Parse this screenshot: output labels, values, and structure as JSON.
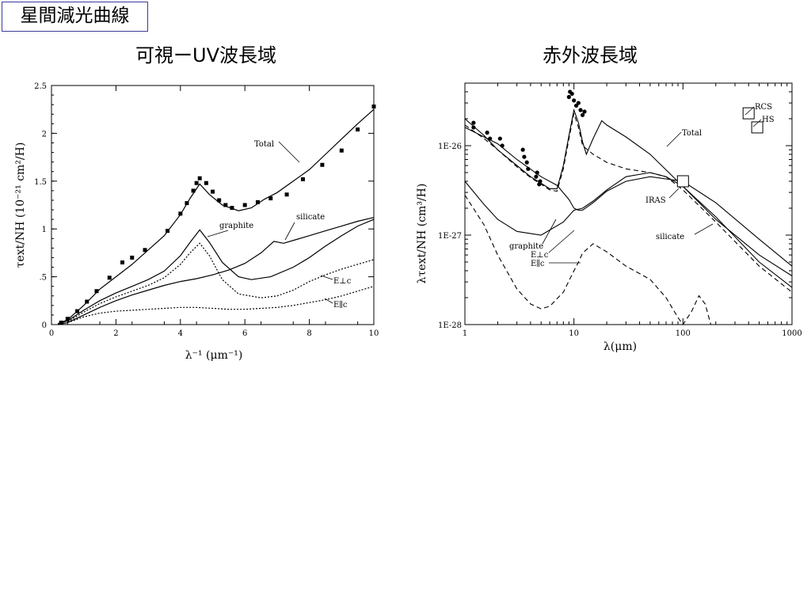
{
  "slide_title": "星間減光曲線",
  "panels": {
    "left_heading": "可視ーUV波長域",
    "right_heading": "赤外波長域"
  },
  "chart_data": [
    {
      "type": "line",
      "heading": "可視ーUV波長域",
      "xlabel": "λ⁻¹ (μm⁻¹)",
      "ylabel": "τext/NH (10⁻²¹ cm²/H)",
      "xlim": [
        0,
        10
      ],
      "ylim": [
        0,
        2.5
      ],
      "x_ticks": [
        0,
        2,
        4,
        6,
        8,
        10
      ],
      "x_tick_labels": [
        "0",
        "2",
        "4",
        "6",
        "8",
        "10"
      ],
      "y_ticks": [
        0,
        0.5,
        1,
        1.5,
        2,
        2.5
      ],
      "y_tick_labels": [
        "0",
        ".5",
        "1",
        "1.5",
        "2",
        "2.5"
      ],
      "grid": false,
      "series": [
        {
          "name": "Total",
          "style": "solid",
          "x": [
            0.2,
            0.5,
            1.0,
            1.5,
            2.0,
            2.5,
            3.0,
            3.5,
            4.0,
            4.3,
            4.6,
            4.9,
            5.3,
            5.8,
            6.2,
            6.6,
            7.0,
            7.5,
            8.0,
            8.5,
            9.0,
            9.5,
            10.0
          ],
          "y": [
            0.01,
            0.05,
            0.2,
            0.37,
            0.5,
            0.63,
            0.78,
            0.93,
            1.15,
            1.32,
            1.47,
            1.36,
            1.25,
            1.19,
            1.22,
            1.31,
            1.38,
            1.5,
            1.62,
            1.78,
            1.94,
            2.1,
            2.25
          ]
        },
        {
          "name": "graphite",
          "style": "solid",
          "x": [
            0.2,
            0.5,
            1.0,
            1.5,
            2.0,
            2.5,
            3.0,
            3.5,
            4.0,
            4.3,
            4.6,
            4.9,
            5.3,
            5.8,
            6.2,
            6.8,
            7.5,
            8.0,
            8.5,
            9.0,
            9.5,
            10.0
          ],
          "y": [
            0.005,
            0.04,
            0.15,
            0.25,
            0.33,
            0.4,
            0.47,
            0.56,
            0.72,
            0.86,
            0.99,
            0.86,
            0.65,
            0.5,
            0.47,
            0.5,
            0.6,
            0.7,
            0.82,
            0.93,
            1.03,
            1.1
          ]
        },
        {
          "name": "silicate",
          "style": "solid",
          "x": [
            0.2,
            0.5,
            1.0,
            1.5,
            2.0,
            2.5,
            3.0,
            3.5,
            4.0,
            4.5,
            5.0,
            5.5,
            6.0,
            6.5,
            6.9,
            7.2,
            7.6,
            8.0,
            8.5,
            9.0,
            9.5,
            10.0
          ],
          "y": [
            0.0,
            0.02,
            0.1,
            0.18,
            0.25,
            0.31,
            0.36,
            0.41,
            0.45,
            0.48,
            0.52,
            0.57,
            0.64,
            0.75,
            0.87,
            0.85,
            0.89,
            0.93,
            0.98,
            1.03,
            1.08,
            1.12
          ]
        },
        {
          "name": "E⊥c",
          "style": "dotted",
          "x": [
            0.5,
            1.0,
            1.5,
            2.0,
            2.5,
            3.0,
            3.5,
            4.0,
            4.3,
            4.6,
            4.9,
            5.3,
            5.8,
            6.5,
            7.0,
            7.5,
            8.0,
            8.5,
            9.0,
            9.5,
            10.0
          ],
          "y": [
            0.03,
            0.13,
            0.22,
            0.29,
            0.35,
            0.41,
            0.49,
            0.63,
            0.75,
            0.85,
            0.72,
            0.47,
            0.32,
            0.28,
            0.3,
            0.36,
            0.45,
            0.52,
            0.58,
            0.63,
            0.68
          ]
        },
        {
          "name": "E∥c",
          "style": "dotted",
          "x": [
            0.5,
            1.0,
            1.5,
            2.0,
            2.5,
            3.0,
            3.5,
            4.0,
            4.5,
            5.0,
            5.5,
            6.0,
            6.5,
            7.0,
            7.5,
            8.0,
            8.5,
            9.0,
            9.5,
            10.0
          ],
          "y": [
            0.02,
            0.08,
            0.12,
            0.14,
            0.15,
            0.16,
            0.17,
            0.18,
            0.18,
            0.17,
            0.16,
            0.16,
            0.17,
            0.18,
            0.2,
            0.23,
            0.26,
            0.3,
            0.35,
            0.4
          ]
        }
      ],
      "observed_points": {
        "x": [
          0.3,
          0.5,
          0.8,
          1.1,
          1.4,
          1.8,
          2.2,
          2.5,
          2.9,
          3.6,
          4.0,
          4.2,
          4.4,
          4.5,
          4.6,
          4.8,
          5.0,
          5.2,
          5.4,
          5.6,
          6.0,
          6.4,
          6.8,
          7.3,
          7.8,
          8.4,
          9.0,
          9.5,
          10.0
        ],
        "y": [
          0.02,
          0.06,
          0.14,
          0.24,
          0.35,
          0.49,
          0.65,
          0.7,
          0.78,
          0.98,
          1.16,
          1.27,
          1.4,
          1.48,
          1.53,
          1.48,
          1.39,
          1.3,
          1.25,
          1.22,
          1.25,
          1.28,
          1.32,
          1.36,
          1.52,
          1.67,
          1.82,
          2.04,
          2.28
        ]
      },
      "annotations": [
        "Total",
        "graphite",
        "silicate",
        "E⊥c",
        "E∥c"
      ]
    },
    {
      "type": "line",
      "heading": "赤外波長域",
      "xlabel": "λ(μm)",
      "ylabel": "λτext/NH (cm³/H)",
      "x_scale": "log",
      "y_scale": "log",
      "xlim": [
        1,
        1000
      ],
      "ylim": [
        1e-28,
        5e-26
      ],
      "x_tick_labels": [
        "1",
        "10",
        "100",
        "1000"
      ],
      "y_tick_labels": [
        "1E-28",
        "1E-27",
        "1E-26"
      ],
      "grid": false,
      "series": [
        {
          "name": "Total",
          "style": "solid",
          "x": [
            1,
            1.5,
            2,
            3,
            4,
            5,
            6,
            7,
            8,
            9,
            10,
            11,
            12,
            13,
            15,
            18,
            20,
            30,
            50,
            100,
            200,
            500,
            1000
          ],
          "y": [
            2e-26,
            1.3e-26,
            9e-27,
            6e-27,
            4.5e-27,
            3.8e-27,
            3.3e-27,
            3.3e-27,
            6e-27,
            1.3e-26,
            2.5e-26,
            1.8e-26,
            1.1e-26,
            8e-27,
            1.2e-26,
            1.9e-26,
            1.7e-26,
            1.25e-26,
            8e-27,
            3.5e-27,
            1.5e-27,
            6e-28,
            3.5e-28
          ]
        },
        {
          "name": "graphite",
          "style": "solid",
          "x": [
            1,
            1.5,
            2,
            3,
            5,
            8,
            10,
            12,
            15,
            20,
            30,
            50,
            70,
            100,
            200,
            500,
            1000
          ],
          "y": [
            4e-27,
            2.2e-27,
            1.5e-27,
            1.1e-27,
            1e-27,
            1.4e-27,
            1.9e-27,
            2e-27,
            2.4e-27,
            3.2e-27,
            4.5e-27,
            5e-27,
            4.5e-27,
            3.5e-27,
            1.6e-27,
            5e-28,
            2.6e-28
          ]
        },
        {
          "name": "silicate",
          "style": "dashed",
          "x": [
            1,
            1.5,
            2,
            3,
            4,
            5,
            6,
            7,
            8,
            9,
            10,
            11,
            12,
            15,
            20,
            30,
            50,
            70,
            100,
            200,
            500,
            1000
          ],
          "y": [
            1.7e-26,
            1.2e-26,
            9e-27,
            5.8e-27,
            4.4e-27,
            3.7e-27,
            3.2e-27,
            3.1e-27,
            5.5e-27,
            1.2e-26,
            2.3e-26,
            1.6e-26,
            1e-26,
            8e-27,
            6.5e-27,
            5.5e-27,
            5e-27,
            4.5e-27,
            3.2e-27,
            1.4e-27,
            4.5e-28,
            2.3e-28
          ]
        },
        {
          "name": "E⊥c",
          "style": "solid",
          "x": [
            1,
            2,
            3,
            5,
            7,
            9,
            10,
            11,
            12,
            15,
            20,
            30,
            50,
            100,
            200,
            500,
            1000
          ],
          "y": [
            1.6e-26,
            1.05e-26,
            7e-27,
            4.5e-27,
            3.6e-27,
            2.5e-27,
            2e-27,
            1.9e-27,
            1.9e-27,
            2.3e-27,
            3.1e-27,
            4e-27,
            4.5e-27,
            4e-27,
            2.3e-27,
            9e-28,
            4.5e-28
          ]
        },
        {
          "name": "E∥c",
          "style": "dashed",
          "x": [
            1,
            1.5,
            2,
            3,
            4,
            5,
            6,
            8,
            10,
            11,
            12,
            15,
            20,
            30,
            50,
            70,
            90,
            100,
            120,
            140,
            160,
            180
          ],
          "y": [
            2.8e-27,
            1.3e-27,
            6e-28,
            2.5e-28,
            1.7e-28,
            1.5e-28,
            1.6e-28,
            2.3e-28,
            4e-28,
            5e-28,
            6.3e-28,
            8e-28,
            6.5e-28,
            4.5e-28,
            3.2e-28,
            2e-28,
            1.2e-28,
            1e-28,
            1.4e-28,
            2.1e-28,
            1.7e-28,
            1e-28
          ]
        }
      ],
      "observed_points": {
        "x": [
          1.2,
          1.2,
          1.6,
          1.7,
          2.1,
          2.2,
          3.4,
          3.5,
          3.7,
          3.8,
          4.5,
          4.6,
          4.8,
          4.9,
          9,
          9.2,
          9.6,
          10,
          10.5,
          11,
          11.5,
          12,
          12.5
        ],
        "y": [
          1.8e-26,
          1.6e-26,
          1.4e-26,
          1.2e-26,
          1.2e-26,
          1e-26,
          9e-27,
          7.5e-27,
          6.5e-27,
          5.5e-27,
          4.5e-27,
          5e-27,
          3.7e-27,
          4e-27,
          3.5e-26,
          4e-26,
          3.8e-26,
          3.2e-26,
          2.8e-26,
          3e-26,
          2.5e-26,
          2.2e-26,
          2.4e-26
        ]
      },
      "marked_regions": [
        {
          "label": "RCS",
          "x": 400,
          "y": 2.3e-26
        },
        {
          "label": "HS",
          "x": 480,
          "y": 1.6e-26
        },
        {
          "label": "IRAS",
          "x": 100,
          "y": 4e-27
        }
      ],
      "annotations": [
        "Total",
        "graphite",
        "E⊥c",
        "E∥c",
        "silicate",
        "IRAS",
        "RCS",
        "HS"
      ]
    }
  ]
}
